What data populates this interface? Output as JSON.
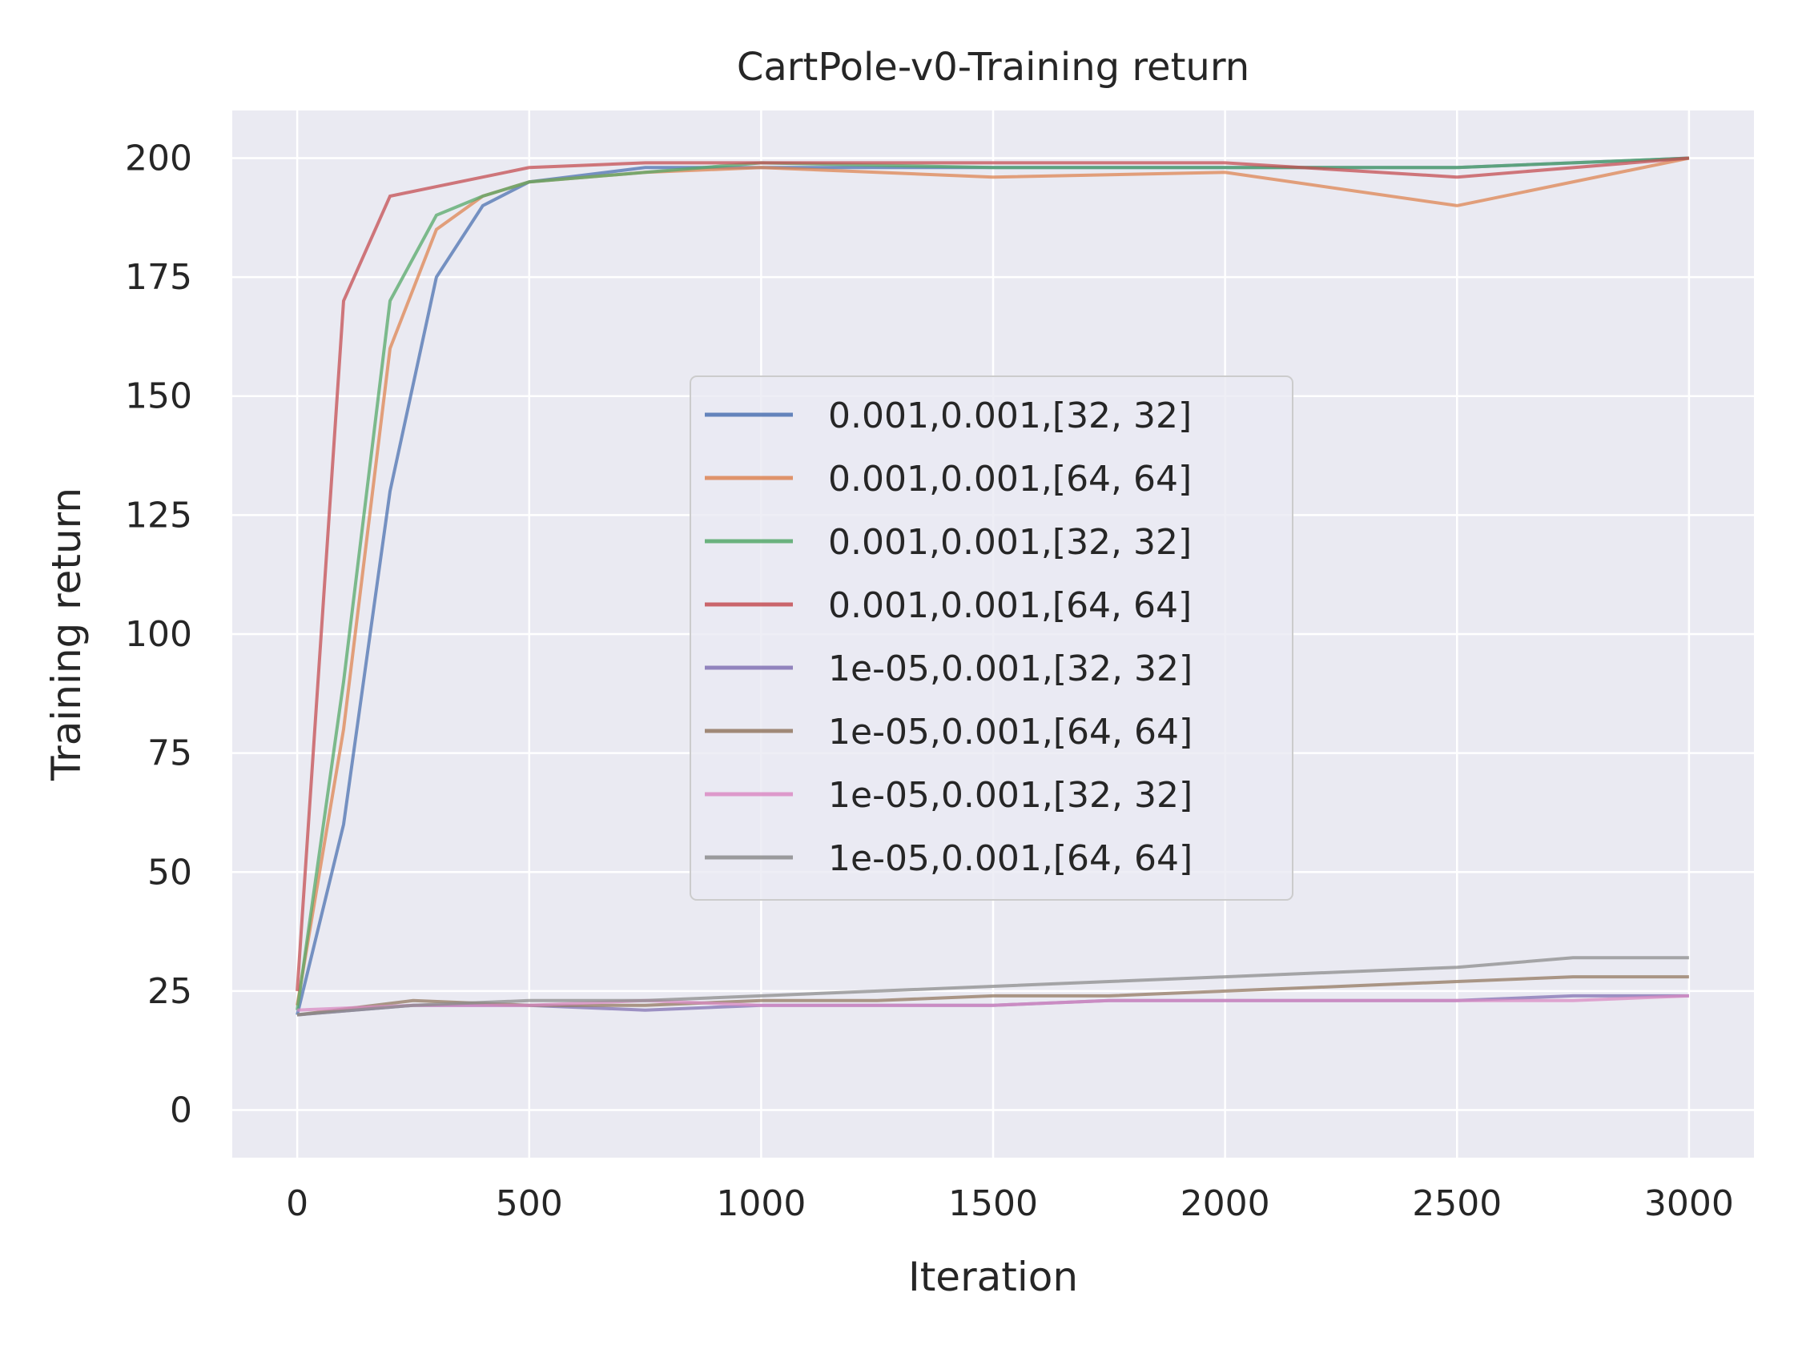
{
  "chart_data": {
    "type": "line",
    "title": "CartPole-v0-Training return",
    "xlabel": "Iteration",
    "ylabel": "Training return",
    "xlim": [
      -140,
      3140
    ],
    "ylim": [
      -10,
      210
    ],
    "xticks": [
      0,
      500,
      1000,
      1500,
      2000,
      2500,
      3000
    ],
    "yticks": [
      0,
      25,
      50,
      75,
      100,
      125,
      150,
      175,
      200
    ],
    "xtick_labels": [
      "0",
      "500",
      "1000",
      "1500",
      "2000",
      "2500",
      "3000"
    ],
    "ytick_labels": [
      "0",
      "25",
      "50",
      "75",
      "100",
      "125",
      "150",
      "175",
      "200"
    ],
    "grid": true,
    "legend_position": "center",
    "background": "#eaeaf2",
    "series": [
      {
        "name": "0.001,0.001,[32, 32]",
        "color": "#4c72b0",
        "x": [
          0,
          100,
          200,
          300,
          400,
          500,
          750,
          1000,
          1500,
          2000,
          2500,
          3000
        ],
        "y": [
          20,
          60,
          130,
          175,
          190,
          195,
          198,
          198,
          198,
          198,
          198,
          200
        ]
      },
      {
        "name": "0.001,0.001,[64, 64]",
        "color": "#dd8452",
        "x": [
          0,
          100,
          200,
          300,
          400,
          500,
          750,
          1000,
          1500,
          2000,
          2500,
          3000
        ],
        "y": [
          22,
          80,
          160,
          185,
          192,
          195,
          197,
          198,
          196,
          197,
          190,
          200
        ]
      },
      {
        "name": "0.001,0.001,[32, 32]",
        "color": "#55a868",
        "x": [
          0,
          100,
          200,
          300,
          400,
          500,
          750,
          1000,
          1500,
          2000,
          2500,
          3000
        ],
        "y": [
          21,
          90,
          170,
          188,
          192,
          195,
          197,
          199,
          198,
          198,
          198,
          200
        ]
      },
      {
        "name": "0.001,0.001,[64, 64]",
        "color": "#c44e52",
        "x": [
          0,
          100,
          200,
          300,
          400,
          500,
          750,
          1000,
          1500,
          2000,
          2500,
          3000
        ],
        "y": [
          25,
          170,
          192,
          194,
          196,
          198,
          199,
          199,
          199,
          199,
          196,
          200
        ]
      },
      {
        "name": "1e-05,0.001,[32, 32]",
        "color": "#8172b3",
        "x": [
          0,
          250,
          500,
          750,
          1000,
          1250,
          1500,
          1750,
          2000,
          2250,
          2500,
          2750,
          3000
        ],
        "y": [
          20,
          22,
          22,
          21,
          22,
          22,
          22,
          23,
          23,
          23,
          23,
          24,
          24
        ]
      },
      {
        "name": "1e-05,0.001,[64, 64]",
        "color": "#937860",
        "x": [
          0,
          250,
          500,
          750,
          1000,
          1250,
          1500,
          1750,
          2000,
          2250,
          2500,
          2750,
          3000
        ],
        "y": [
          20,
          23,
          22,
          22,
          23,
          23,
          24,
          24,
          25,
          26,
          27,
          28,
          28
        ]
      },
      {
        "name": "1e-05,0.001,[32, 32]",
        "color": "#da8bc3",
        "x": [
          0,
          250,
          500,
          750,
          1000,
          1250,
          1500,
          1750,
          2000,
          2250,
          2500,
          2750,
          3000
        ],
        "y": [
          21,
          22,
          22,
          23,
          22,
          22,
          22,
          23,
          23,
          23,
          23,
          23,
          24
        ]
      },
      {
        "name": "1e-05,0.001,[64, 64]",
        "color": "#8c8c8c",
        "x": [
          0,
          250,
          500,
          750,
          1000,
          1250,
          1500,
          1750,
          2000,
          2250,
          2500,
          2750,
          3000
        ],
        "y": [
          20,
          22,
          23,
          23,
          24,
          25,
          26,
          27,
          28,
          29,
          30,
          32,
          32
        ]
      }
    ]
  }
}
